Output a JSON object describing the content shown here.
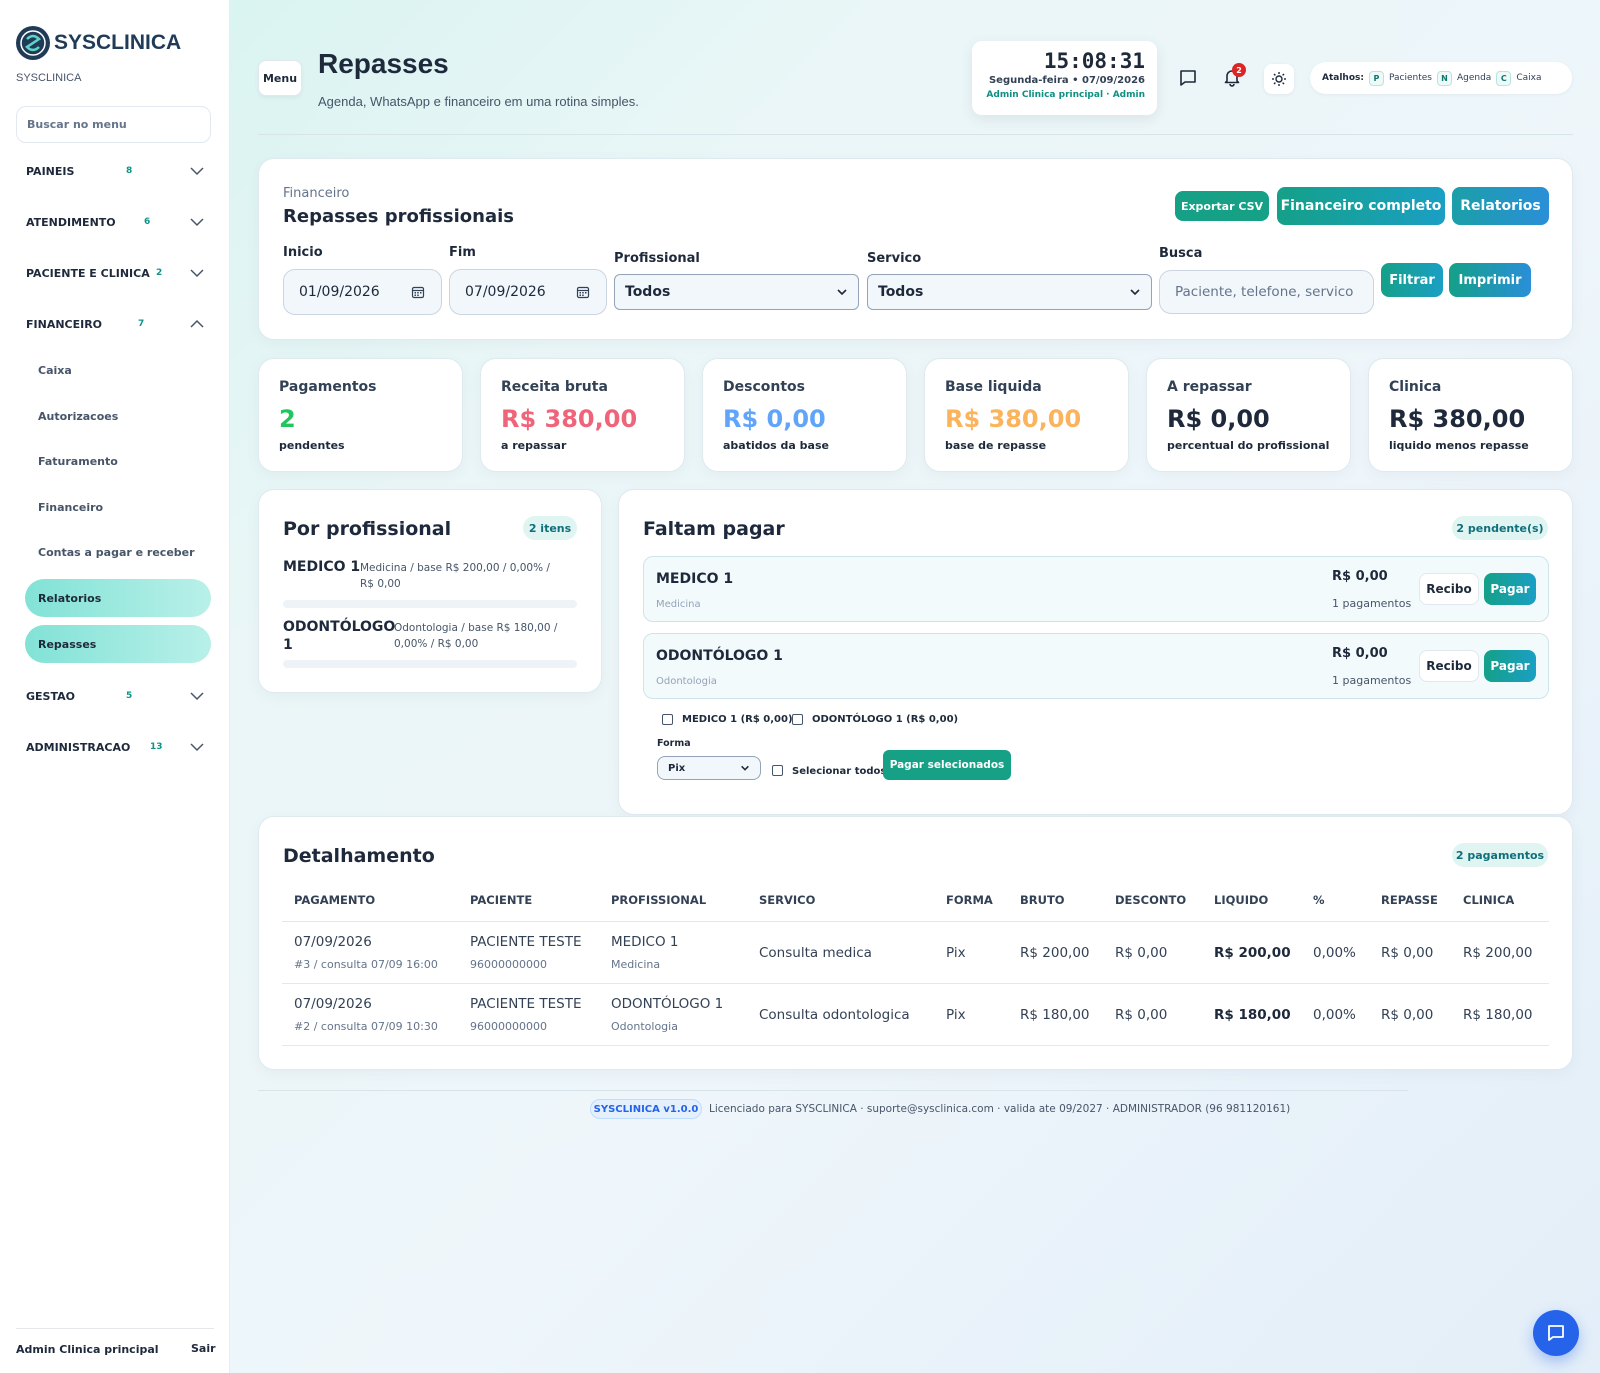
{
  "brand": {
    "name": "SYSCLINICA",
    "sub": "SYSCLINICA"
  },
  "sidebar": {
    "search_placeholder": "Buscar no menu",
    "groups": [
      {
        "label": "PAINEIS",
        "count": "8"
      },
      {
        "label": "ATENDIMENTO",
        "count": "6"
      },
      {
        "label": "PACIENTE E CLINICA",
        "count": "2"
      },
      {
        "label": "FINANCEIRO",
        "count": "7"
      },
      {
        "label": "GESTAO",
        "count": "5"
      },
      {
        "label": "ADMINISTRACAO",
        "count": "13"
      }
    ],
    "finance_items": [
      "Caixa",
      "Autorizacoes",
      "Faturamento",
      "Financeiro",
      "Contas a pagar e receber",
      "Relatorios",
      "Repasses"
    ],
    "user": "Admin Clinica principal",
    "logout": "Sair"
  },
  "header": {
    "menu_label": "Menu",
    "title": "Repasses",
    "subtitle": "Agenda, WhatsApp e financeiro em uma rotina simples.",
    "clock_time": "15:08:31",
    "clock_date": "Segunda-feira • 07/09/2026",
    "clock_user": "Admin Clinica principal · Admin",
    "notification_count": "2",
    "shortcuts_label": "Atalhos:",
    "shortcuts": [
      {
        "key": "P",
        "label": "Pacientes"
      },
      {
        "key": "N",
        "label": "Agenda"
      },
      {
        "key": "C",
        "label": "Caixa"
      }
    ]
  },
  "filters": {
    "eyebrow": "Financeiro",
    "title": "Repasses profissionais",
    "export_label": "Exportar CSV",
    "finance_label": "Financeiro completo",
    "reports_label": "Relatorios",
    "start_label": "Inicio",
    "start_value": "01/09/2026",
    "end_label": "Fim",
    "end_value": "07/09/2026",
    "professional_label": "Profissional",
    "professional_value": "Todos",
    "service_label": "Servico",
    "service_value": "Todos",
    "search_label": "Busca",
    "search_placeholder": "Paciente, telefone, servico",
    "filter_label": "Filtrar",
    "print_label": "Imprimir"
  },
  "stats": [
    {
      "title": "Pagamentos",
      "value": "2",
      "foot": "pendentes",
      "color": "#22c55e"
    },
    {
      "title": "Receita bruta",
      "value": "R$ 380,00",
      "foot": "a repassar",
      "color": "#f0647a"
    },
    {
      "title": "Descontos",
      "value": "R$ 0,00",
      "foot": "abatidos da base",
      "color": "#60a5fa"
    },
    {
      "title": "Base liquida",
      "value": "R$ 380,00",
      "foot": "base de repasse",
      "color": "#fbb35c"
    },
    {
      "title": "A repassar",
      "value": "R$ 0,00",
      "foot": "percentual do profissional",
      "color": "#1e293b"
    },
    {
      "title": "Clinica",
      "value": "R$ 380,00",
      "foot": "liquido menos repasse",
      "color": "#1e293b"
    }
  ],
  "by_professional": {
    "title": "Por profissional",
    "badge": "2 itens",
    "items": [
      {
        "name": "MEDICO 1",
        "desc": "Medicina / base R$ 200,00 / 0,00% / R$ 0,00",
        "share": 0
      },
      {
        "name": "ODONTÓLOGO 1",
        "desc": "Odontologia / base R$ 180,00 / 0,00% / R$ 0,00",
        "share": 0
      }
    ]
  },
  "pending": {
    "title": "Faltam pagar",
    "badge": "2 pendente(s)",
    "items": [
      {
        "name": "MEDICO 1",
        "specialty": "Medicina",
        "amount": "R$ 0,00",
        "count": "1 pagamentos",
        "receipt": "Recibo",
        "pay": "Pagar"
      },
      {
        "name": "ODONTÓLOGO 1",
        "specialty": "Odontologia",
        "amount": "R$ 0,00",
        "count": "1 pagamentos",
        "receipt": "Recibo",
        "pay": "Pagar"
      }
    ],
    "checks": [
      "MEDICO 1 (R$ 0,00)",
      "ODONTÓLOGO 1 (R$ 0,00)"
    ],
    "method_label": "Forma",
    "method_value": "Pix",
    "select_all": "Selecionar todos",
    "pay_selected": "Pagar selecionados"
  },
  "detail": {
    "title": "Detalhamento",
    "badge": "2 pagamentos",
    "columns": [
      "PAGAMENTO",
      "PACIENTE",
      "PROFISSIONAL",
      "SERVICO",
      "FORMA",
      "BRUTO",
      "DESCONTO",
      "LIQUIDO",
      "%",
      "REPASSE",
      "CLINICA"
    ],
    "rows": [
      {
        "date": "07/09/2026",
        "ref": "#3 / consulta 07/09 16:00",
        "patient": "PACIENTE TESTE",
        "phone": "96000000000",
        "professional": "MEDICO 1",
        "specialty": "Medicina",
        "service": "Consulta medica",
        "method": "Pix",
        "gross": "R$ 200,00",
        "discount": "R$ 0,00",
        "net": "R$ 200,00",
        "pct": "0,00%",
        "transfer": "R$ 0,00",
        "clinic": "R$ 200,00"
      },
      {
        "date": "07/09/2026",
        "ref": "#2 / consulta 07/09 10:30",
        "patient": "PACIENTE TESTE",
        "phone": "96000000000",
        "professional": "ODONTÓLOGO 1",
        "specialty": "Odontologia",
        "service": "Consulta odontologica",
        "method": "Pix",
        "gross": "R$ 180,00",
        "discount": "R$ 0,00",
        "net": "R$ 180,00",
        "pct": "0,00%",
        "transfer": "R$ 0,00",
        "clinic": "R$ 180,00"
      }
    ]
  },
  "footer": {
    "version": "SYSCLINICA v1.0.0",
    "license": "Licenciado para SYSCLINICA · suporte@sysclinica.com · valida ate 09/2027 · ADMINISTRADOR (96 981120161)"
  }
}
